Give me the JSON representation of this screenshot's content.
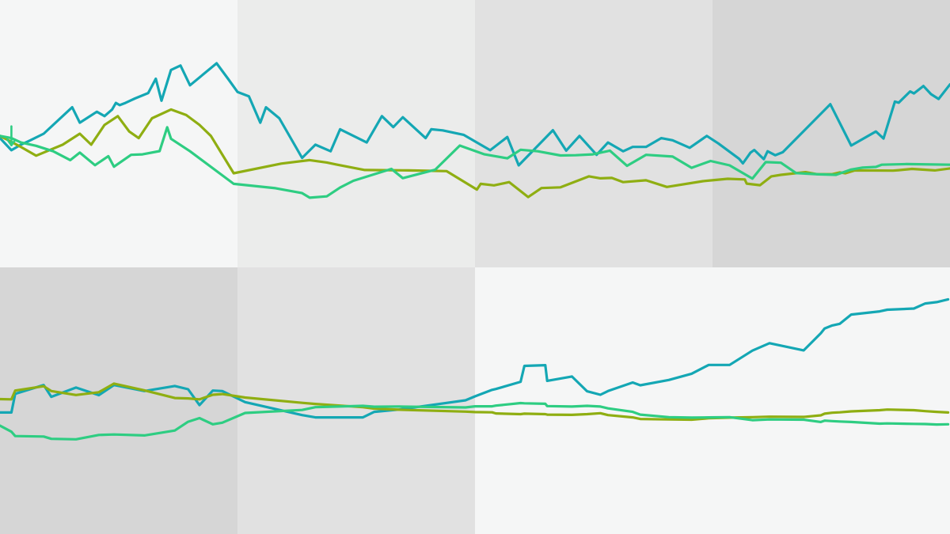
{
  "colors": {
    "band_shades": [
      "#f5f6f6",
      "#ebeceb",
      "#e1e1e1",
      "#d6d6d6"
    ],
    "teal": "#14a7b4",
    "olive": "#8fae12",
    "green": "#2ecd82"
  },
  "chart_data": [
    {
      "type": "line",
      "title": "",
      "xlabel": "",
      "ylabel": "",
      "grid": false,
      "legend": "none",
      "band_shades": [
        0,
        1,
        2,
        3
      ],
      "xlim": [
        0,
        100
      ],
      "ylim": [
        0,
        100
      ],
      "marker": {
        "type": "down-arrow",
        "x": 1.2,
        "y": 44,
        "color": "#2ecd82"
      },
      "series": [
        {
          "color": "#14a7b4",
          "x": [
            0,
            1.2,
            2.2,
            3.2,
            4.6,
            7.6,
            8.4,
            10.2,
            11,
            11.8,
            12.2,
            12.6,
            13.2,
            14.2,
            15.6,
            16.4,
            17,
            18,
            19,
            20,
            22.8,
            24,
            25,
            26.2,
            27.4,
            28,
            29.4,
            31.8,
            33.2,
            34.8,
            35.8,
            38.6,
            40.2,
            41.4,
            42.4,
            44.8,
            45.4,
            46.6,
            48.8,
            51.6,
            53.4,
            54.6,
            58.2,
            59.6,
            61,
            62.8,
            64,
            65.6,
            66.6,
            68,
            69.6,
            70.8,
            72.6,
            74.4,
            75.6,
            77.8,
            78.2,
            79,
            79.4,
            80.4,
            80.8,
            81.6,
            82.4,
            87.4,
            89.6,
            92.2,
            93,
            94.2,
            94.6,
            95.8,
            96.2,
            97.2,
            98,
            98.8,
            100
          ],
          "y": [
            48,
            42.5,
            45,
            47,
            50,
            62,
            55,
            60,
            58,
            61,
            64,
            63,
            64,
            66,
            68.5,
            75,
            65,
            79,
            81,
            72,
            82,
            75,
            69,
            67,
            55,
            62,
            57,
            39,
            45,
            42,
            52,
            46,
            58,
            53,
            57.5,
            48,
            52,
            51.5,
            49.5,
            42.5,
            48.5,
            35.6,
            51.6,
            42.3,
            49,
            40.4,
            46,
            42,
            44,
            44,
            48,
            47,
            43.6,
            49,
            45.6,
            38.6,
            36.5,
            41.4,
            42.6,
            38.4,
            42,
            40.2,
            41.6,
            63.4,
            44.6,
            51,
            47.8,
            64.6,
            64.1,
            69.2,
            68.3,
            71.7,
            68,
            65.8,
            72.4
          ]
        },
        {
          "color": "#8fae12",
          "x": [
            0,
            2.2,
            3.8,
            6.6,
            8.4,
            9.6,
            11,
            12.4,
            13.6,
            14.6,
            16,
            18,
            19.6,
            21,
            22.2,
            24.6,
            29.6,
            32.6,
            34.4,
            35.4,
            38.4,
            43,
            47,
            50.2,
            50.6,
            52,
            53.6,
            55.6,
            57,
            59,
            62,
            63.2,
            64.4,
            65.6,
            68,
            70.2,
            74,
            76.6,
            78.4,
            78.6,
            80,
            81.2,
            82.2,
            84.8,
            86,
            87.6,
            88.4,
            89,
            90,
            94,
            94.6,
            96,
            98.4,
            100
          ],
          "y": [
            49,
            44,
            40,
            45,
            50,
            45,
            54,
            58,
            51,
            48,
            57,
            61,
            58.5,
            54,
            49,
            32,
            36.4,
            38,
            36.9,
            36,
            33.5,
            33.3,
            33,
            24.6,
            27.2,
            26.5,
            28,
            21.2,
            25.3,
            25.6,
            30.6,
            29.7,
            29.9,
            28,
            28.8,
            25.8,
            28.4,
            29.5,
            29.2,
            27.3,
            26.6,
            30.6,
            31.3,
            32.5,
            31.6,
            31.6,
            32.4,
            32,
            33.3,
            33.2,
            33.4,
            34,
            33.3,
            34.2
          ]
        },
        {
          "color": "#2ecd82",
          "x": [
            0,
            1.2,
            2.2,
            3.8,
            5.6,
            7.4,
            8.4,
            10,
            11.4,
            12,
            13.8,
            15,
            16.8,
            17.6,
            18,
            20,
            24.6,
            29,
            31.8,
            32.6,
            34.4,
            35.8,
            37.2,
            41.2,
            42.4,
            45.8,
            48.4,
            51,
            53.4,
            54.8,
            56.6,
            59,
            60.6,
            62.4,
            64.2,
            66,
            68,
            70.8,
            72.8,
            74.8,
            76.8,
            79.2,
            80.6,
            82.2,
            83.8,
            86.2,
            88,
            89.6,
            90.8,
            92.2,
            92.8,
            95.4,
            100
          ],
          "y": [
            49,
            48,
            46,
            44.5,
            42,
            38,
            41.4,
            35.7,
            39.8,
            35,
            40.4,
            40.6,
            42.1,
            52.9,
            47.7,
            42,
            27.2,
            25.2,
            23,
            20.9,
            21.5,
            25.5,
            28.6,
            34,
            29.8,
            33.6,
            44.6,
            40.6,
            38.8,
            42.7,
            42,
            40.1,
            40.2,
            40.6,
            42.3,
            35.4,
            40.4,
            39.6,
            34.5,
            37.6,
            35.6,
            29.6,
            37.1,
            36.8,
            32.1,
            31.5,
            31.3,
            33.7,
            34.6,
            34.9,
            35.9,
            36.2,
            35.9
          ]
        }
      ]
    },
    {
      "type": "line",
      "title": "",
      "xlabel": "",
      "ylabel": "",
      "grid": false,
      "legend": "none",
      "band_shades": [
        3,
        2,
        0,
        0
      ],
      "xlim": [
        0,
        100
      ],
      "ylim": [
        0,
        100
      ],
      "series": [
        {
          "color": "#14a7b4",
          "x": [
            0,
            1.2,
            1.6,
            4.6,
            5.4,
            8,
            10.4,
            12,
            15.2,
            18.4,
            19.8,
            21,
            22.4,
            23.4,
            25.8,
            31.8,
            33.2,
            38.2,
            39.4,
            42,
            49,
            50,
            51.8,
            52.2,
            54.8,
            55.2,
            57.4,
            57.6,
            60.2,
            61.8,
            63.2,
            64,
            66.6,
            67.4,
            70.4,
            72.8,
            74.6,
            76.8,
            79.2,
            81,
            84.6,
            86.4,
            86.8,
            87.6,
            88.4,
            89.6,
            92.6,
            93.4,
            96.2,
            97.4,
            98.6,
            99.8
          ],
          "y": [
            40.6,
            40.6,
            48.7,
            52.5,
            47.4,
            51.4,
            48.1,
            52.5,
            49.9,
            52.1,
            50.7,
            43.8,
            50.1,
            49.9,
            45.1,
            39.5,
            38.5,
            38.5,
            40.9,
            41.9,
            45.9,
            47.6,
            50.4,
            50.8,
            53.9,
            60.8,
            61.1,
            54.3,
            56.2,
            49.8,
            48.3,
            49.9,
            53.6,
            52.4,
            54.7,
            57.4,
            61.2,
            61.2,
            67.4,
            70.6,
            67.5,
            74.9,
            77,
            78.3,
            79,
            83,
            84.4,
            85.1,
            85.6,
            87.8,
            88.4,
            89.6
          ]
        },
        {
          "color": "#8fae12",
          "x": [
            0,
            1.2,
            1.6,
            4.6,
            5.4,
            8,
            10.4,
            12,
            15.2,
            18.4,
            19.8,
            21,
            22.4,
            23.4,
            25.8,
            31.8,
            33.2,
            38.2,
            39.4,
            42,
            49,
            50,
            51.8,
            52.2,
            54.8,
            55.2,
            57.4,
            57.6,
            60.2,
            61.8,
            63.2,
            64,
            66.6,
            67.4,
            70.4,
            72.8,
            74.6,
            76.8,
            79.2,
            81,
            84.6,
            86.4,
            86.8,
            87.6,
            88.4,
            89.6,
            92.6,
            93.4,
            96.2,
            97.4,
            98.6,
            99.8
          ],
          "y": [
            46.4,
            46.3,
            50.1,
            52,
            49.9,
            48.2,
            49.4,
            53.1,
            50.2,
            46.9,
            46.7,
            46.3,
            48.3,
            48.6,
            47.1,
            44.8,
            44.3,
            42.9,
            42.3,
            41.8,
            41,
            40.8,
            40.7,
            40.2,
            39.9,
            40.1,
            39.9,
            39.7,
            39.6,
            39.9,
            40.3,
            39.5,
            38.5,
            37.8,
            37.6,
            37.5,
            38.1,
            38.4,
            38.6,
            38.8,
            38.7,
            39.4,
            40.1,
            40.5,
            40.7,
            41.1,
            41.6,
            41.9,
            41.6,
            41.2,
            40.9,
            40.6
          ]
        },
        {
          "color": "#2ecd82",
          "x": [
            0,
            1.2,
            1.6,
            4.6,
            5.4,
            8,
            10.4,
            12,
            15.2,
            18.4,
            19.8,
            21,
            22.4,
            23.4,
            25.8,
            31.8,
            33.2,
            38.2,
            39.4,
            42,
            49,
            50,
            51.8,
            52.2,
            54.8,
            55.2,
            57.4,
            57.6,
            60.2,
            61.8,
            63.2,
            64,
            66.6,
            67.4,
            70.4,
            72.8,
            74.6,
            76.8,
            79.2,
            81,
            84.6,
            86.4,
            86.8,
            87.6,
            88.4,
            89.6,
            92.6,
            93.4,
            96.2,
            97.4,
            98.6,
            99.8
          ],
          "y": [
            34.9,
            32.3,
            30.4,
            30.2,
            29.2,
            29,
            30.9,
            31.1,
            30.7,
            32.8,
            36.6,
            38.2,
            35.5,
            36.2,
            40.4,
            41.7,
            42.9,
            43.5,
            43.1,
            43.2,
            42.8,
            43.3,
            43.3,
            43.6,
            44.7,
            44.6,
            44.4,
            43.4,
            43.2,
            43.5,
            43.2,
            42.4,
            40.9,
            39.7,
            38.6,
            38.4,
            38.5,
            38.6,
            37.3,
            37.6,
            37.5,
            36.5,
            37.1,
            36.9,
            36.7,
            36.5,
            35.8,
            35.9,
            35.7,
            35.6,
            35.4,
            35.5
          ]
        }
      ]
    }
  ]
}
